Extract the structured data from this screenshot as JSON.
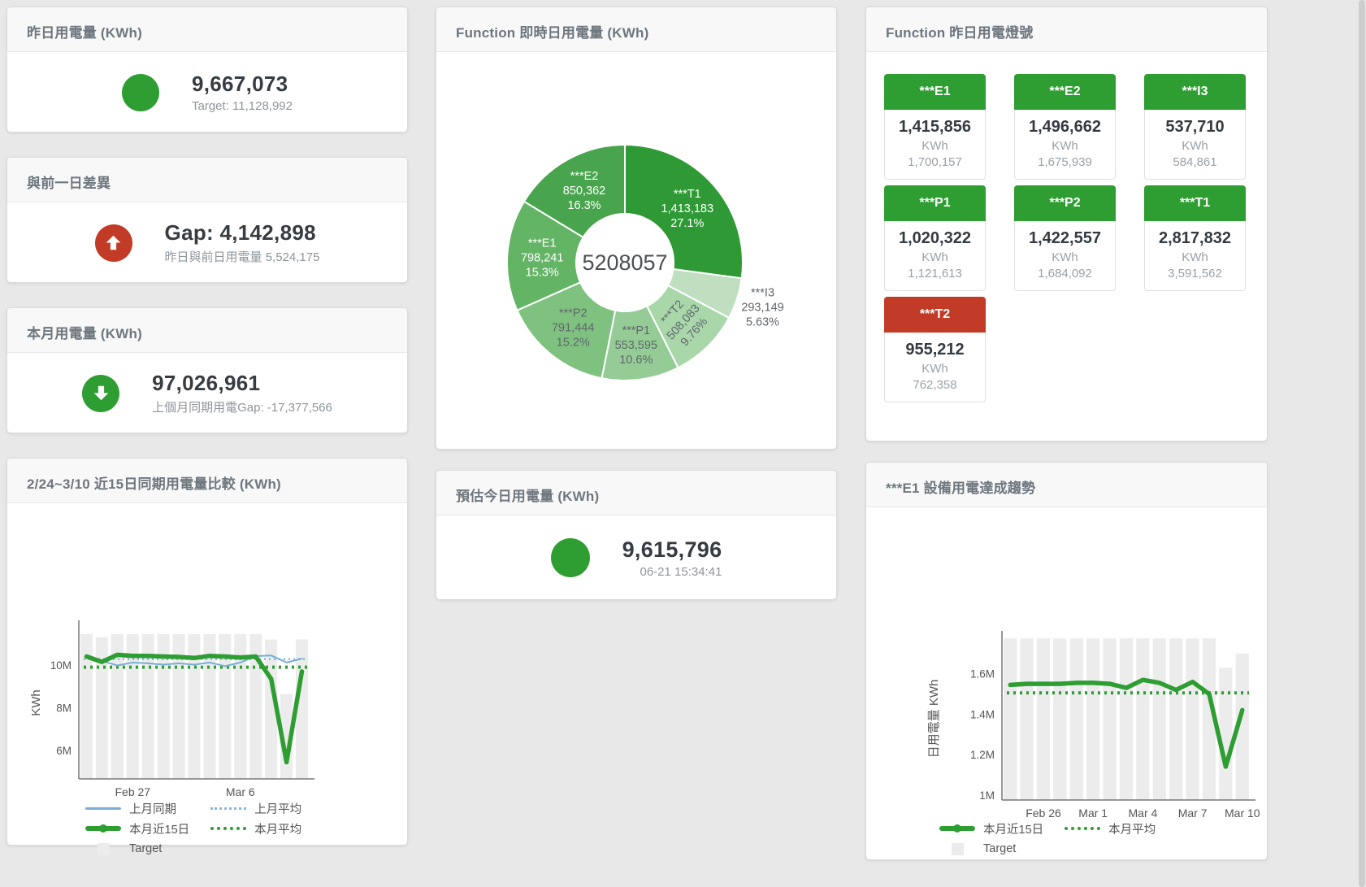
{
  "colors": {
    "green": "#2e9d32",
    "red": "#c23b26",
    "blue_line": "#78aed3",
    "blue_dotted": "#85b7dd",
    "target_bar": "#ececec",
    "title_text": "#6e767e",
    "value_text": "#363c42",
    "muted_text": "#8e959c"
  },
  "cards": {
    "yesterday": {
      "title": "昨日用電量 (KWh)",
      "value": "9,667,073",
      "subtitle": "Target: 11,128,992"
    },
    "gap": {
      "title": "與前一日差異",
      "value": "Gap: 4,142,898",
      "subtitle": "昨日與前日用電量 5,524,175"
    },
    "month": {
      "title": "本月用電量 (KWh)",
      "value": "97,026,961",
      "subtitle": "上個月同期用電Gap: -17,377,566"
    },
    "estimate": {
      "title": "預估今日用電量 (KWh)",
      "value": "9,615,796",
      "subtitle": "06-21 15:34:41"
    },
    "realtime": {
      "title": "Function 即時日用電量 (KWh)"
    },
    "lamp": {
      "title": "Function 昨日用電燈號",
      "tiles": [
        {
          "label": "***E1",
          "value": "1,415,856",
          "unit": "KWh",
          "target": "1,700,157",
          "status": "green"
        },
        {
          "label": "***E2",
          "value": "1,496,662",
          "unit": "KWh",
          "target": "1,675,939",
          "status": "green"
        },
        {
          "label": "***I3",
          "value": "537,710",
          "unit": "KWh",
          "target": "584,861",
          "status": "green"
        },
        {
          "label": "***P1",
          "value": "1,020,322",
          "unit": "KWh",
          "target": "1,121,613",
          "status": "green"
        },
        {
          "label": "***P2",
          "value": "1,422,557",
          "unit": "KWh",
          "target": "1,684,092",
          "status": "green"
        },
        {
          "label": "***T1",
          "value": "2,817,832",
          "unit": "KWh",
          "target": "3,591,562",
          "status": "green"
        },
        {
          "label": "***T2",
          "value": "955,212",
          "unit": "KWh",
          "target": "762,358",
          "status": "red"
        }
      ]
    },
    "compare": {
      "title": "2/24~3/10 近15日同期用電量比較 (KWh)",
      "legend": [
        {
          "label": "上月同期",
          "marker": "blue-line"
        },
        {
          "label": "上月平均",
          "marker": "blue-dotted"
        },
        {
          "label": "本月近15日",
          "marker": "green-thick"
        },
        {
          "label": "本月平均",
          "marker": "green-dotted"
        },
        {
          "label": "Target",
          "marker": "gray-square"
        }
      ]
    },
    "trend": {
      "title": "***E1 設備用電達成趨勢",
      "legend": [
        {
          "label": "本月近15日",
          "marker": "green-thick"
        },
        {
          "label": "本月平均",
          "marker": "green-dotted"
        },
        {
          "label": "Target",
          "marker": "gray-square"
        }
      ]
    }
  },
  "chart_data": [
    {
      "id": "function-realtime-donut",
      "type": "pie",
      "variant": "donut",
      "title": "Function 即時日用電量 (KWh)",
      "center_label": "5208057",
      "slices": [
        {
          "name": "***T1",
          "value": 1413183,
          "value_str": "1,413,183",
          "pct": 27.1,
          "pct_str": "27.1%",
          "color": "#2f9a35",
          "label_color": "#ffffff"
        },
        {
          "name": "***I3",
          "value": 293149,
          "value_str": "293,149",
          "pct": 5.63,
          "pct_str": "5.63%",
          "color": "#c0dfc1",
          "label_color": "#5f666b",
          "label_outside": true
        },
        {
          "name": "***T2",
          "value": 508083,
          "value_str": "508,083",
          "pct": 9.76,
          "pct_str": "9.76%",
          "color": "#a9d7aa",
          "label_color": "#5f666b",
          "label_rotate": -48
        },
        {
          "name": "***P1",
          "value": 553595,
          "value_str": "553,595",
          "pct": 10.6,
          "pct_str": "10.6%",
          "color": "#95cc96",
          "label_color": "#5f666b"
        },
        {
          "name": "***P2",
          "value": 791444,
          "value_str": "791,444",
          "pct": 15.2,
          "pct_str": "15.2%",
          "color": "#7fc280",
          "label_color": "#5f666b"
        },
        {
          "name": "***E1",
          "value": 798241,
          "value_str": "798,241",
          "pct": 15.3,
          "pct_str": "15.3%",
          "color": "#64b466",
          "label_color": "#ffffff"
        },
        {
          "name": "***E2",
          "value": 850362,
          "value_str": "850,362",
          "pct": 16.3,
          "pct_str": "16.3%",
          "color": "#49a54d",
          "label_color": "#ffffff"
        }
      ]
    },
    {
      "id": "compare-15day",
      "type": "line",
      "title": "2/24~3/10 近15日同期用電量比較 (KWh)",
      "ylabel": "KWh",
      "ylim": [
        4670000,
        11790000
      ],
      "yticks": [
        {
          "value": 6000000,
          "label": "6M"
        },
        {
          "value": 8000000,
          "label": "8M"
        },
        {
          "value": 10000000,
          "label": "10M"
        }
      ],
      "xticks": [
        {
          "index": 3,
          "label": "Feb 27"
        },
        {
          "index": 10,
          "label": "Mar 6"
        }
      ],
      "target_name": "Target",
      "target_color": "#ececec",
      "target_bars": [
        11450000,
        11300000,
        11450000,
        11450000,
        11450000,
        11450000,
        11450000,
        11450000,
        11450000,
        11450000,
        11450000,
        11450000,
        11200000,
        8650000,
        11200000
      ],
      "series": [
        {
          "name": "上月同期",
          "style": "thin",
          "color": "#78aed3",
          "values": [
            10450000,
            10200000,
            9980000,
            10120000,
            10080000,
            10020000,
            10080000,
            10020000,
            10120000,
            9950000,
            10120000,
            10420000,
            10450000,
            10120000,
            10300000
          ]
        },
        {
          "name": "上月平均",
          "style": "dashed",
          "color": "#85b7dd",
          "constant": 10280000
        },
        {
          "name": "本月近15日",
          "style": "thick",
          "color": "#2e9d32",
          "values": [
            10400000,
            10150000,
            10480000,
            10430000,
            10430000,
            10400000,
            10380000,
            10330000,
            10430000,
            10400000,
            10350000,
            10400000,
            9350000,
            5450000,
            9700000
          ]
        },
        {
          "name": "本月平均",
          "style": "dotted",
          "color": "#2e9d32",
          "constant": 9900000
        }
      ]
    },
    {
      "id": "e1-trend",
      "type": "line",
      "title": "***E1 設備用電達成趨勢",
      "ylabel": "日用電量 KWh",
      "ylim": [
        975000,
        1780000
      ],
      "yticks": [
        {
          "value": 1000000,
          "label": "1M"
        },
        {
          "value": 1200000,
          "label": "1.2M"
        },
        {
          "value": 1400000,
          "label": "1.4M"
        },
        {
          "value": 1600000,
          "label": "1.6M"
        }
      ],
      "xticks": [
        {
          "index": 2,
          "label": "Feb 26"
        },
        {
          "index": 5,
          "label": "Mar 1"
        },
        {
          "index": 8,
          "label": "Mar 4"
        },
        {
          "index": 11,
          "label": "Mar 7"
        },
        {
          "index": 14,
          "label": "Mar 10"
        }
      ],
      "target_name": "Target",
      "target_color": "#ececec",
      "target_bars": [
        1775000,
        1775000,
        1775000,
        1775000,
        1775000,
        1775000,
        1775000,
        1775000,
        1775000,
        1775000,
        1775000,
        1775000,
        1775000,
        1630000,
        1700000
      ],
      "series": [
        {
          "name": "本月近15日",
          "style": "thick",
          "color": "#2e9d32",
          "values": [
            1545000,
            1550000,
            1550000,
            1550000,
            1555000,
            1555000,
            1550000,
            1530000,
            1570000,
            1555000,
            1520000,
            1560000,
            1500000,
            1140000,
            1420000
          ]
        },
        {
          "name": "本月平均",
          "style": "dotted",
          "color": "#2e9d32",
          "constant": 1505000
        }
      ]
    }
  ]
}
